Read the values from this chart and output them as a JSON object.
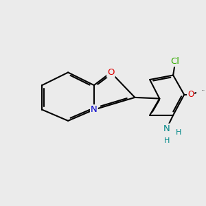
{
  "background_color": "#ebebeb",
  "bond_color": "#000000",
  "bond_lw": 1.5,
  "atom_colors": {
    "O": "#dd0000",
    "N_ring": "#0000cc",
    "N_amino": "#008888",
    "Cl": "#33aa00",
    "C": "#000000"
  },
  "fs": 9.5,
  "xlim": [
    0,
    7
  ],
  "ylim": [
    0,
    6
  ]
}
